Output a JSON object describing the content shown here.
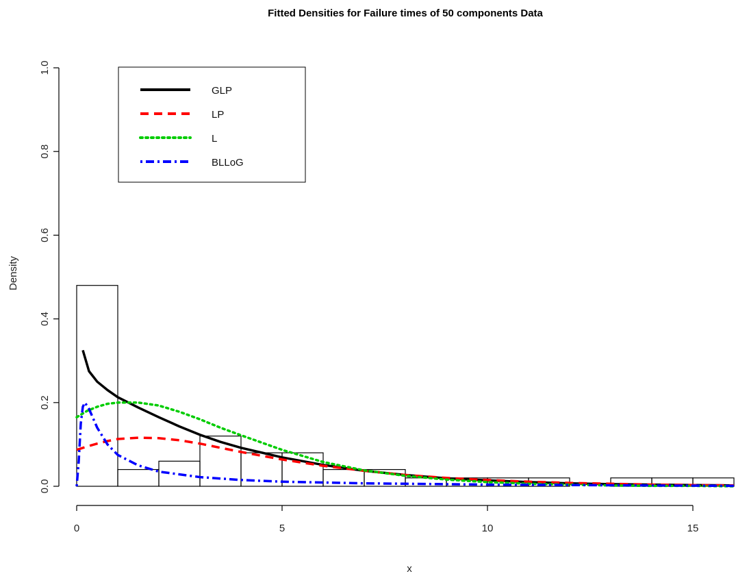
{
  "chart_data": {
    "type": "histogram-with-density-lines",
    "title": "Fitted Densities for Failure times of 50 components Data",
    "xlabel": "x",
    "ylabel": "Density",
    "xlim": [
      0,
      16
    ],
    "ylim": [
      0,
      1.0
    ],
    "x_ticks": [
      0,
      5,
      10,
      15
    ],
    "y_ticks": [
      0.0,
      0.2,
      0.4,
      0.6,
      0.8,
      1.0
    ],
    "x_tick_labels": [
      "0",
      "5",
      "10",
      "15"
    ],
    "y_tick_labels": [
      "0.0",
      "0.2",
      "0.4",
      "0.6",
      "0.8",
      "1.0"
    ],
    "legend_position": "top-left",
    "histogram": {
      "bin_edges": [
        0,
        1,
        2,
        3,
        4,
        5,
        6,
        7,
        8,
        9,
        10,
        11,
        12,
        13,
        14,
        15,
        16
      ],
      "densities": [
        0.48,
        0.04,
        0.06,
        0.12,
        0.08,
        0.08,
        0.04,
        0.04,
        0.02,
        0.02,
        0.02,
        0.02,
        0.0,
        0.02,
        0.02,
        0.02
      ]
    },
    "series": [
      {
        "name": "GLP",
        "color": "#000000",
        "style": "solid",
        "x": [
          0.15,
          0.3,
          0.5,
          0.75,
          1,
          1.5,
          2,
          2.5,
          3,
          3.5,
          4,
          5,
          6,
          7,
          8,
          9,
          10,
          11,
          12,
          13,
          14,
          15,
          16
        ],
        "y": [
          0.325,
          0.275,
          0.25,
          0.23,
          0.213,
          0.188,
          0.165,
          0.143,
          0.123,
          0.106,
          0.092,
          0.069,
          0.051,
          0.037,
          0.027,
          0.019,
          0.014,
          0.01,
          0.007,
          0.005,
          0.004,
          0.003,
          0.002
        ]
      },
      {
        "name": "LP",
        "color": "#ff0000",
        "style": "dashed",
        "x": [
          0,
          0.25,
          0.5,
          0.75,
          1,
          1.5,
          2,
          2.5,
          3,
          3.5,
          4,
          5,
          6,
          7,
          8,
          9,
          10,
          11,
          12,
          13,
          14,
          15,
          16
        ],
        "y": [
          0.087,
          0.095,
          0.102,
          0.108,
          0.113,
          0.116,
          0.115,
          0.11,
          0.102,
          0.092,
          0.082,
          0.064,
          0.049,
          0.037,
          0.027,
          0.02,
          0.015,
          0.011,
          0.008,
          0.006,
          0.004,
          0.003,
          0.002
        ]
      },
      {
        "name": "L",
        "color": "#00cc00",
        "style": "dotted",
        "x": [
          0,
          0.25,
          0.5,
          0.75,
          1,
          1.5,
          2,
          2.5,
          3,
          3.5,
          4,
          5,
          6,
          7,
          8,
          9,
          10,
          11,
          12,
          13,
          14,
          15,
          16
        ],
        "y": [
          0.165,
          0.18,
          0.19,
          0.197,
          0.2,
          0.2,
          0.193,
          0.178,
          0.16,
          0.14,
          0.122,
          0.087,
          0.058,
          0.038,
          0.025,
          0.016,
          0.01,
          0.006,
          0.004,
          0.002,
          0.001,
          0.001,
          0.0
        ]
      },
      {
        "name": "BLLoG",
        "color": "#0000ff",
        "style": "dotdash",
        "x": [
          0,
          0.05,
          0.1,
          0.15,
          0.2,
          0.3,
          0.5,
          0.75,
          1,
          1.5,
          2,
          3,
          4,
          5,
          6,
          7,
          8,
          10,
          12,
          14,
          16
        ],
        "y": [
          0.0,
          0.06,
          0.15,
          0.19,
          0.2,
          0.185,
          0.14,
          0.1,
          0.075,
          0.05,
          0.035,
          0.022,
          0.015,
          0.011,
          0.009,
          0.007,
          0.006,
          0.004,
          0.003,
          0.002,
          0.001
        ]
      }
    ]
  }
}
